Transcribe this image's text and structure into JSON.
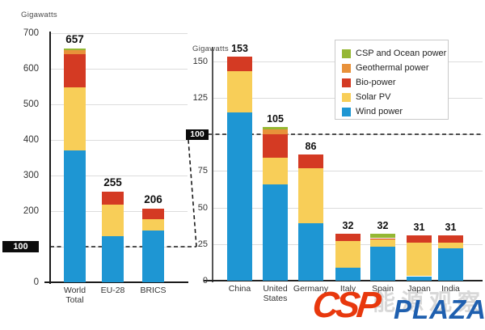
{
  "legend": {
    "items": [
      {
        "label": "CSP and Ocean power",
        "color": "#95B733"
      },
      {
        "label": "Geothermal power",
        "color": "#E8913A"
      },
      {
        "label": "Bio-power",
        "color": "#D43A23"
      },
      {
        "label": "Solar PV",
        "color": "#F8CE58"
      },
      {
        "label": "Wind power",
        "color": "#1E96D3"
      }
    ]
  },
  "watermark": {
    "csp": "CSP",
    "plaza": "PLAZA",
    "cn_text": "能源观察",
    "csp_color": "#E8380D",
    "plaza_color": "#1E5FAF"
  },
  "chart_data": [
    {
      "type": "bar",
      "stacked": true,
      "panel": "left",
      "unit_label": "Gigawatts",
      "categories": [
        "World Total",
        "EU-28",
        "BRICS"
      ],
      "totals": [
        657,
        255,
        206
      ],
      "series": [
        {
          "name": "Wind power",
          "color": "#1E96D3",
          "values": [
            370,
            130,
            146
          ]
        },
        {
          "name": "Solar PV",
          "color": "#F8CE58",
          "values": [
            178,
            88,
            32
          ]
        },
        {
          "name": "Bio-power",
          "color": "#D43A23",
          "values": [
            92,
            37,
            28
          ]
        },
        {
          "name": "Geothermal power",
          "color": "#E8913A",
          "values": [
            12,
            0,
            0
          ]
        },
        {
          "name": "CSP and Ocean power",
          "color": "#95B733",
          "values": [
            5,
            0,
            0
          ]
        }
      ],
      "ylim": [
        0,
        700
      ],
      "yticks": [
        0,
        100,
        200,
        300,
        400,
        500,
        600,
        700
      ],
      "highlight_tick": 100,
      "grid": true,
      "legend_position": "none"
    },
    {
      "type": "bar",
      "stacked": true,
      "panel": "right",
      "unit_label": "Gigawatts",
      "categories": [
        "China",
        "United States",
        "Germany",
        "Italy",
        "Spain",
        "Japan",
        "India"
      ],
      "totals": [
        153,
        105,
        86,
        32,
        32,
        31,
        31
      ],
      "series": [
        {
          "name": "Wind power",
          "color": "#1E96D3",
          "values": [
            115,
            66,
            39,
            9,
            23,
            3,
            22
          ]
        },
        {
          "name": "Solar PV",
          "color": "#F8CE58",
          "values": [
            28,
            18,
            38,
            18,
            5,
            23,
            4
          ]
        },
        {
          "name": "Bio-power",
          "color": "#D43A23",
          "values": [
            10,
            16,
            9,
            5,
            1,
            5,
            5
          ]
        },
        {
          "name": "Geothermal power",
          "color": "#E8913A",
          "values": [
            0,
            3.5,
            0,
            0,
            0,
            0,
            0
          ]
        },
        {
          "name": "CSP and Ocean power",
          "color": "#95B733",
          "values": [
            0,
            1.5,
            0,
            0,
            3,
            0,
            0
          ]
        }
      ],
      "ylim": [
        0,
        150
      ],
      "yticks": [
        0,
        25,
        50,
        75,
        100,
        125,
        150
      ],
      "highlight_tick": 100,
      "grid": true,
      "legend_position": "top-right"
    }
  ]
}
